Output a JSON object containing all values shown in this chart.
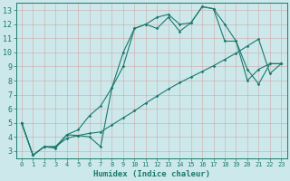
{
  "xlabel": "Humidex (Indice chaleur)",
  "background_color": "#cde8ea",
  "grid_color": "#aacdd0",
  "line_color": "#1a7a6e",
  "xlim": [
    -0.5,
    23.5
  ],
  "ylim": [
    2.5,
    13.5
  ],
  "xticks": [
    0,
    1,
    2,
    3,
    4,
    5,
    6,
    7,
    8,
    9,
    10,
    11,
    12,
    13,
    14,
    15,
    16,
    17,
    18,
    19,
    20,
    21,
    22,
    23
  ],
  "yticks": [
    3,
    4,
    5,
    6,
    7,
    8,
    9,
    10,
    11,
    12,
    13
  ],
  "line1_x": [
    0,
    1,
    2,
    3,
    4,
    5,
    6,
    7,
    8,
    9,
    10,
    11,
    12,
    13,
    14,
    15,
    16,
    17,
    18,
    19,
    20,
    21,
    22,
    23
  ],
  "line1_y": [
    5,
    2.7,
    3.3,
    3.2,
    4.15,
    4.1,
    4.0,
    3.3,
    7.5,
    10.0,
    11.7,
    12.0,
    12.5,
    12.7,
    12.0,
    12.1,
    13.25,
    13.1,
    12.0,
    10.8,
    8.8,
    7.75,
    9.2,
    9.2
  ],
  "line2_x": [
    0,
    1,
    2,
    3,
    4,
    5,
    6,
    7,
    8,
    9,
    10,
    11,
    12,
    13,
    14,
    15,
    16,
    17,
    18,
    19,
    20,
    21,
    22,
    23
  ],
  "line2_y": [
    5,
    2.7,
    3.3,
    3.3,
    4.15,
    4.5,
    5.5,
    6.2,
    7.5,
    9.0,
    11.7,
    12.0,
    11.7,
    12.5,
    11.5,
    12.1,
    13.25,
    13.1,
    10.8,
    10.8,
    8.0,
    8.8,
    9.2,
    9.2
  ],
  "line3_x": [
    0,
    1,
    2,
    3,
    4,
    5,
    6,
    7,
    8,
    9,
    10,
    11,
    12,
    13,
    14,
    15,
    16,
    17,
    18,
    19,
    20,
    21,
    22,
    23
  ],
  "line3_y": [
    5,
    2.7,
    3.3,
    3.3,
    3.9,
    4.1,
    4.25,
    4.35,
    4.85,
    5.35,
    5.85,
    6.4,
    6.9,
    7.4,
    7.85,
    8.25,
    8.65,
    9.05,
    9.5,
    9.95,
    10.45,
    10.95,
    8.5,
    9.2
  ]
}
